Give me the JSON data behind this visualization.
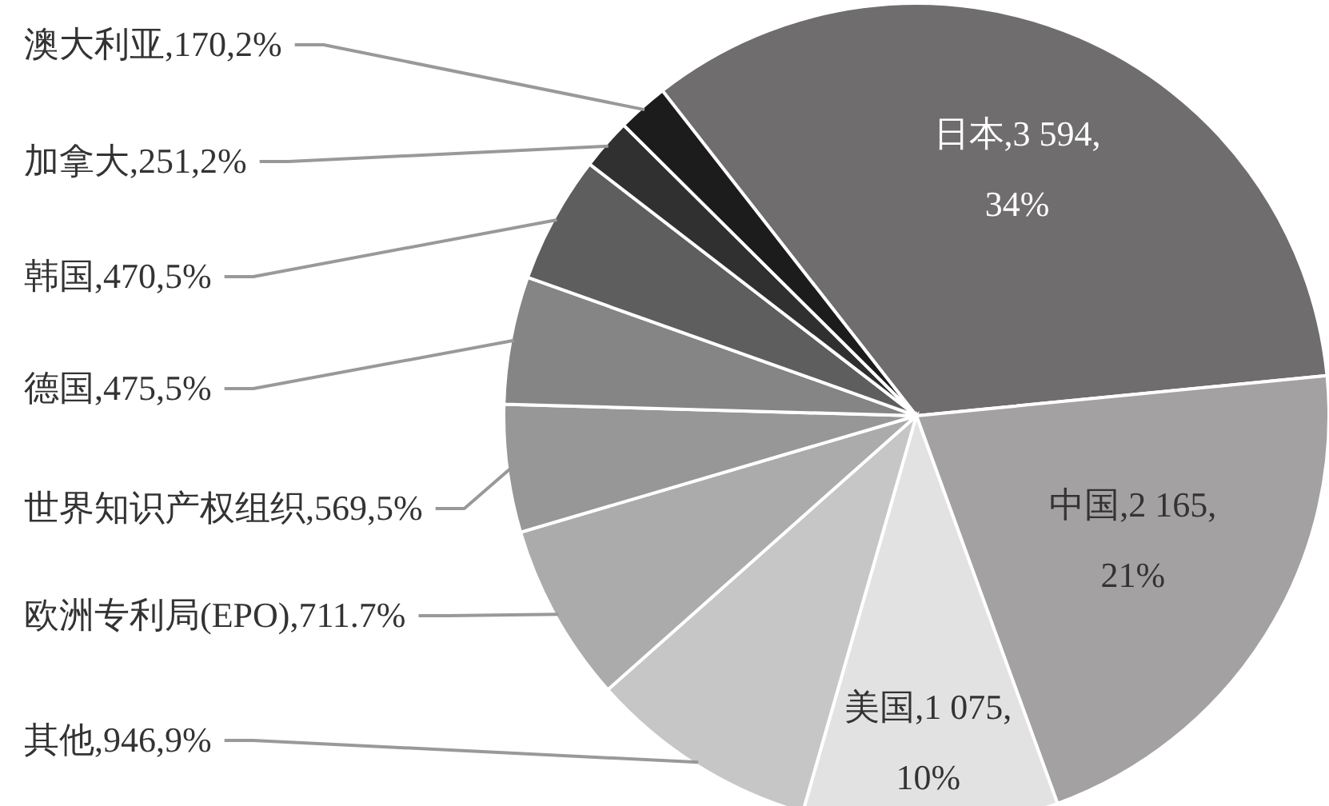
{
  "chart_data": {
    "type": "pie",
    "categories": [
      "日本,3 594,34%",
      "中国,2 165,21%",
      "美国,1 075,10%",
      "其他,946,9%",
      "欧洲专利局(EPO),711.7%",
      "世界知识产权组织,569,5%",
      "德国,475,5%",
      "韩国,470,5%",
      "加拿大,251,2%",
      "澳大利亚,170,2%"
    ],
    "values": [
      34,
      21,
      10,
      9,
      7,
      5,
      5,
      5,
      2,
      2
    ],
    "colors": [
      "#6f6d6e",
      "#a3a1a2",
      "#e2e2e2",
      "#c6c6c6",
      "#ababab",
      "#979797",
      "#858585",
      "#5e5e5e",
      "#303030",
      "#1c1c1c"
    ]
  }
}
